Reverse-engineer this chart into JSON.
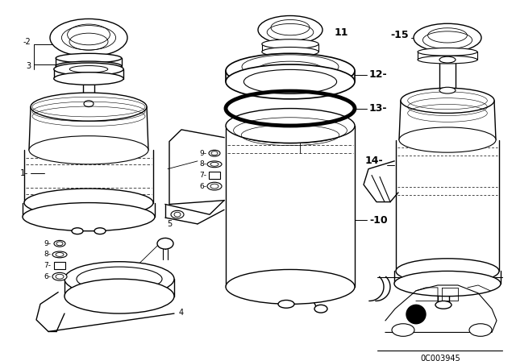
{
  "bg_color": "#ffffff",
  "line_color": "#1a1a1a",
  "diagram_code": "0C003945",
  "figsize": [
    6.4,
    4.48
  ],
  "dpi": 100
}
